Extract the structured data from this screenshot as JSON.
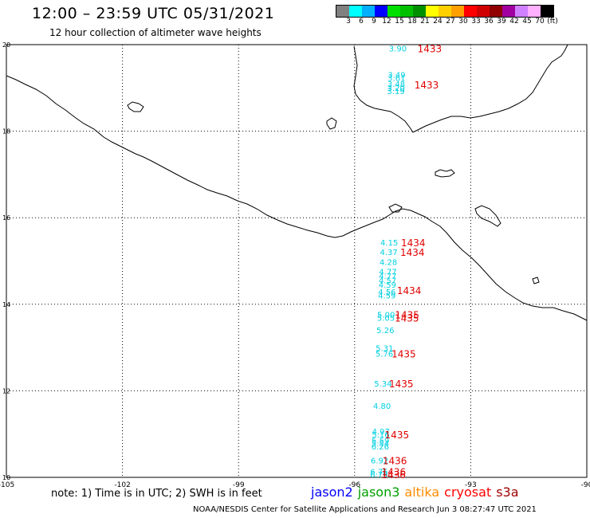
{
  "header": {
    "title": "12:00 – 23:59 UTC 05/31/2021",
    "subtitle": "12 hour collection of altimeter wave heights"
  },
  "colorbar": {
    "colors": [
      "#808080",
      "#00ffff",
      "#00b0ff",
      "#0000ff",
      "#00e000",
      "#00c000",
      "#009000",
      "#ffff00",
      "#ffd000",
      "#ffa000",
      "#ff0000",
      "#d00000",
      "#900000",
      "#a000a0",
      "#d080ff",
      "#ffb0ff",
      "#000000"
    ],
    "labels": [
      "3",
      "6",
      "9",
      "12",
      "15",
      "18",
      "21",
      "24",
      "27",
      "30",
      "33",
      "36",
      "39",
      "42",
      "45",
      "70",
      "(ft)"
    ]
  },
  "map": {
    "lon_ticks": [
      "-105",
      "-102",
      "-99",
      "-96",
      "-93",
      "-90"
    ],
    "lat_ticks": [
      "20",
      "18",
      "16",
      "14",
      "12",
      "10"
    ],
    "lon_range": [
      -105,
      -90
    ],
    "lat_range": [
      10,
      20
    ]
  },
  "observations": [
    {
      "swh": "3.90",
      "lat": 19.92
    },
    {
      "swh": "3.49",
      "lat": 19.31
    },
    {
      "swh": "3.61",
      "lat": 19.24
    },
    {
      "swh": "3.48",
      "lat": 19.1
    },
    {
      "swh": "3.20",
      "lat": 19.01
    },
    {
      "swh": "3.19",
      "lat": 18.93
    },
    {
      "swh": "4.15",
      "lat": 15.43
    },
    {
      "swh": "4.37",
      "lat": 15.21
    },
    {
      "swh": "4.28",
      "lat": 14.98
    },
    {
      "swh": "4.77",
      "lat": 14.76
    },
    {
      "swh": "4.77",
      "lat": 14.66
    },
    {
      "swh": "4.57",
      "lat": 14.56
    },
    {
      "swh": "4.59",
      "lat": 14.46
    },
    {
      "swh": "4.56",
      "lat": 14.29
    },
    {
      "swh": "4.59",
      "lat": 14.21
    },
    {
      "swh": "5.00",
      "lat": 13.77
    },
    {
      "swh": "5.05",
      "lat": 13.69
    },
    {
      "swh": "5.26",
      "lat": 13.41
    },
    {
      "swh": "5.31",
      "lat": 12.99
    },
    {
      "swh": "5.76",
      "lat": 12.86
    },
    {
      "swh": "5.34",
      "lat": 12.17
    },
    {
      "swh": "4.80",
      "lat": 11.66
    },
    {
      "swh": "4.97",
      "lat": 11.07
    },
    {
      "swh": "5.16",
      "lat": 10.99
    },
    {
      "swh": "5.59",
      "lat": 10.86
    },
    {
      "swh": "5.54",
      "lat": 10.79
    },
    {
      "swh": "6.26",
      "lat": 10.72
    },
    {
      "swh": "6.92",
      "lat": 10.4
    },
    {
      "swh": "6.75",
      "lat": 10.14
    },
    {
      "swh": "6.79",
      "lat": 10.07
    }
  ],
  "times": [
    {
      "time": "1433",
      "lat": 19.92
    },
    {
      "time": "1433",
      "lat": 19.08
    },
    {
      "time": "1434",
      "lat": 15.43
    },
    {
      "time": "1434",
      "lat": 15.21
    },
    {
      "time": "1434",
      "lat": 14.33
    },
    {
      "time": "1435",
      "lat": 13.77
    },
    {
      "time": "1435",
      "lat": 13.69
    },
    {
      "time": "1435",
      "lat": 12.86
    },
    {
      "time": "1435",
      "lat": 12.17
    },
    {
      "time": "1435",
      "lat": 10.99
    },
    {
      "time": "1436",
      "lat": 10.4
    },
    {
      "time": "1436",
      "lat": 10.14
    },
    {
      "time": "1436",
      "lat": 10.07
    }
  ],
  "note": "note: 1) Time is in UTC; 2) SWH is in feet",
  "legend": [
    {
      "name": "jason2",
      "color": "#0000ff"
    },
    {
      "name": "jason3",
      "color": "#00a000"
    },
    {
      "name": "altika",
      "color": "#ff8c00"
    },
    {
      "name": "cryosat",
      "color": "#ff0000"
    },
    {
      "name": "s3a",
      "color": "#a00000"
    }
  ],
  "credit": "NOAA/NESDIS Center for Satellite Applications and Research   Jun  3 08:27:47 UTC 2021"
}
